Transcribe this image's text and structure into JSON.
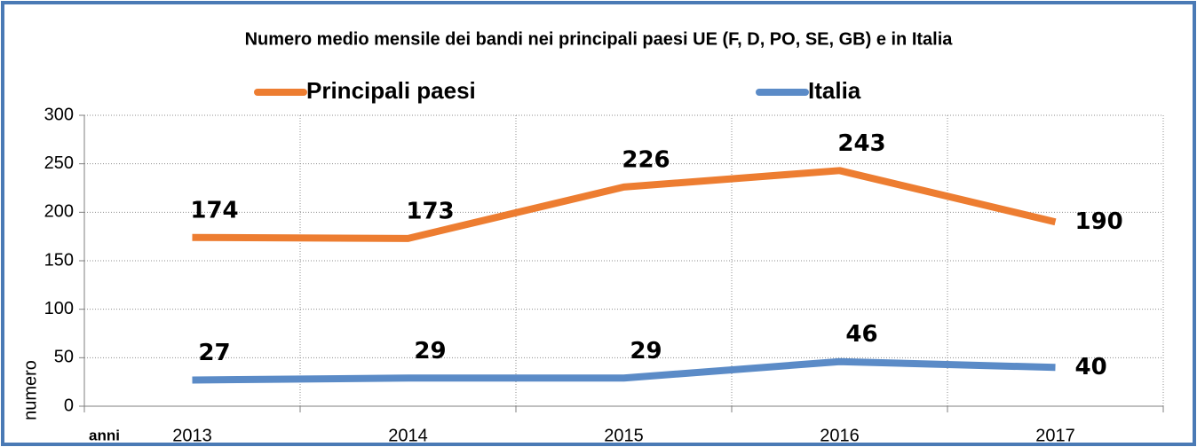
{
  "chart_data": {
    "type": "line",
    "title": "Numero medio mensile dei bandi nei principali paesi UE (F, D, PO, SE, GB) e in Italia",
    "xlabel": "anni",
    "ylabel": "numero",
    "categories": [
      "2013",
      "2014",
      "2015",
      "2016",
      "2017"
    ],
    "series": [
      {
        "name": "Principali paesi",
        "color": "#ed7d31",
        "values": [
          174,
          173,
          226,
          243,
          190
        ]
      },
      {
        "name": "Italia",
        "color": "#5b8bc7",
        "values": [
          27,
          29,
          29,
          46,
          40
        ]
      }
    ],
    "ylim": [
      0,
      300
    ],
    "yticks": [
      0,
      50,
      100,
      150,
      200,
      250,
      300
    ],
    "grid": true,
    "legend": "top"
  }
}
